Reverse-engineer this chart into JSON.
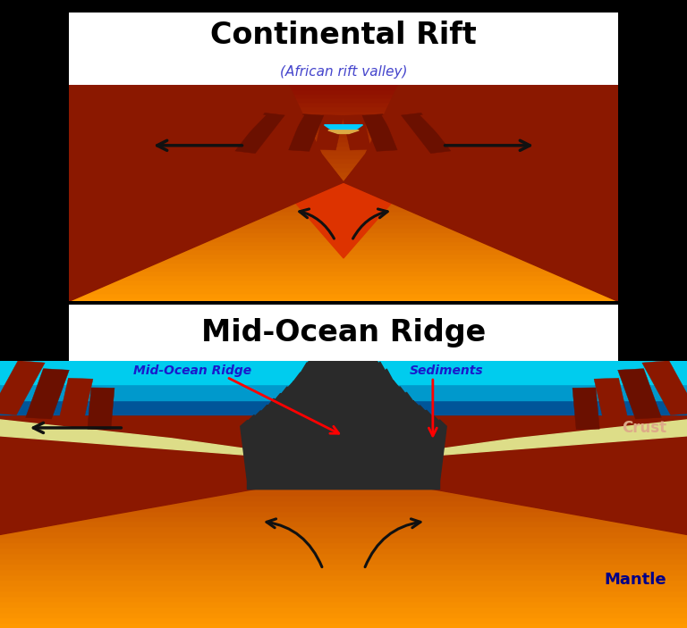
{
  "bg_color": "#000000",
  "title1": "Continental Rift",
  "title2": "Mid-Ocean Ridge",
  "subtitle1": "(African rift valley)",
  "subtitle1_color": "#4444cc",
  "crust_color": "#8B1800",
  "crust_dark": "#5a0e00",
  "crust_shadow": "#6B1000",
  "mantle_top_color": "#CC2200",
  "mantle_mid_color": "#FF5500",
  "mantle_bot_color": "#FFAA00",
  "ocean_bright": "#00CCEE",
  "ocean_mid": "#0099CC",
  "ocean_deep": "#005599",
  "sediment_color": "#DDDD88",
  "ridge_color": "#2a2a2a",
  "water_color": "#00CCFF",
  "label_mid_ocean": "Mid-Ocean Ridge",
  "label_sediments": "Sediments",
  "label_crust": "Crust",
  "label_mantle": "Mantle",
  "label_color_crust": "#DDAA88",
  "label_color_mantle": "#000088",
  "arrow_color": "#111111",
  "white": "#ffffff",
  "black": "#000000"
}
